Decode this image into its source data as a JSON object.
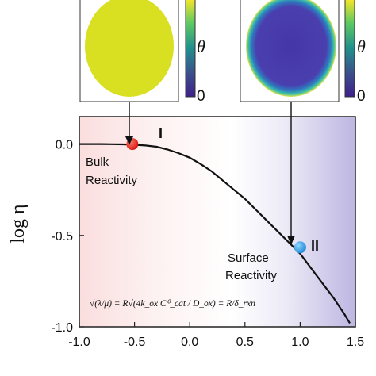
{
  "chart_data": {
    "type": "line",
    "xlabel": "",
    "ylabel": "log η",
    "xlim": [
      -1.0,
      1.5
    ],
    "ylim": [
      -1.0,
      0.15
    ],
    "x_ticks": [
      "-1.0",
      "-0.5",
      "0.0",
      "0.5",
      "1.0",
      "1.5"
    ],
    "y_ticks": [
      "0.0",
      "-0.5",
      "-1.0"
    ],
    "x_tick_values": [
      -1.0,
      -0.5,
      0.0,
      0.5,
      1.0,
      1.5
    ],
    "y_tick_values": [
      0.0,
      -0.5,
      -1.0
    ],
    "series": [
      {
        "x": [
          -1.0,
          -0.9,
          -0.8,
          -0.7,
          -0.6,
          -0.5,
          -0.4,
          -0.3,
          -0.2,
          -0.1,
          0.0,
          0.1,
          0.2,
          0.3,
          0.4,
          0.5,
          0.6,
          0.7,
          0.8,
          0.9,
          1.0,
          1.1,
          1.2,
          1.3,
          1.4,
          1.45
        ],
        "values": [
          0.0,
          0.0,
          0.0,
          -0.001,
          -0.002,
          -0.004,
          -0.008,
          -0.015,
          -0.03,
          -0.05,
          -0.075,
          -0.11,
          -0.15,
          -0.2,
          -0.25,
          -0.3,
          -0.36,
          -0.42,
          -0.48,
          -0.54,
          -0.6,
          -0.68,
          -0.76,
          -0.84,
          -0.93,
          -0.98
        ]
      }
    ],
    "points": [
      {
        "x": -0.52,
        "y": 0.0,
        "color": "#e8261b"
      },
      {
        "x": 1.0,
        "y": -0.565,
        "color": "#2f9de0"
      }
    ],
    "region_labels": [
      "I",
      "II"
    ],
    "annotations": {
      "bulk": [
        "Bulk",
        "Reactivity"
      ],
      "surface": [
        "Surface",
        "Reactivity"
      ]
    },
    "formula": "√(λ/μ) = R√(4k_ox C⁰_cat / D_ox) = R/δ_rxn"
  },
  "colorbar": {
    "symbol": "θ",
    "min_label": "0",
    "left_colors": [
      "#fde725",
      "#35b779",
      "#21918c",
      "#3b528b",
      "#440154"
    ],
    "inset_left_fill": "#d9e021",
    "inset_right_fill": "#4b3fa8"
  },
  "colors": {
    "curve": "#111111",
    "region_I_bg": "#fbe3e3",
    "region_II_bg": "#c9c3e6"
  }
}
